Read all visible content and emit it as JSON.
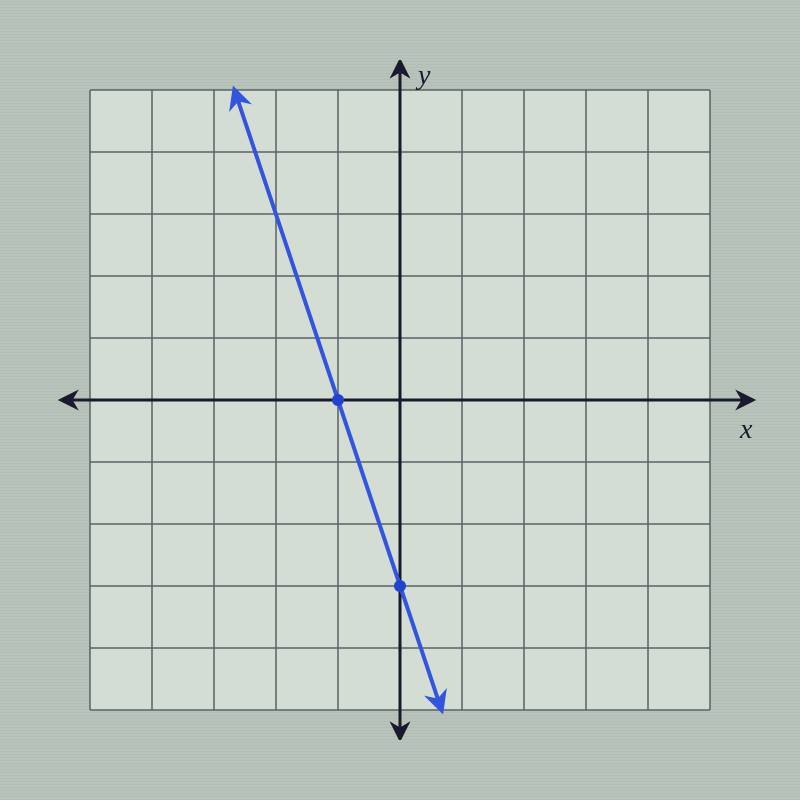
{
  "chart": {
    "type": "line",
    "background_color": "#b8c4bb",
    "grid_background": "#d4ddd3",
    "grid_color": "#5a6268",
    "grid_stroke_width": 1.5,
    "axis_color": "#1a1a2e",
    "axis_stroke_width": 3,
    "line_color": "#3355dd",
    "line_stroke_width": 4,
    "point_color": "#2244cc",
    "point_radius": 6,
    "xlim": [
      -5,
      5
    ],
    "ylim": [
      -5,
      5
    ],
    "x_tick_step": 1,
    "y_tick_step": 1,
    "cell_size": 62,
    "grid_cells_x": 10,
    "grid_cells_y": 10,
    "x_label": "x",
    "y_label": "y",
    "label_fontsize": 28,
    "label_font_style": "italic",
    "label_color": "#1a1a2e",
    "points": [
      {
        "x": -1,
        "y": 0
      },
      {
        "x": 0,
        "y": -3
      }
    ],
    "line_start": {
      "x": -2.67,
      "y": 5
    },
    "line_end": {
      "x": 0.67,
      "y": -5
    },
    "arrowheads": {
      "line_start": true,
      "line_end": true,
      "axis_ends": true
    }
  }
}
